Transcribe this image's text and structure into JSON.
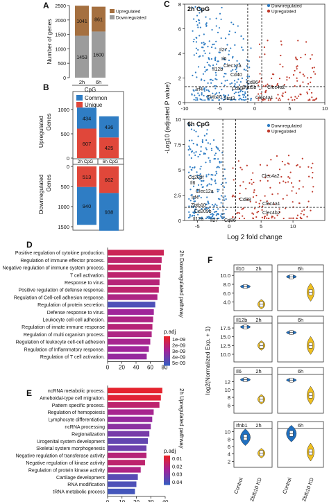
{
  "panels": {
    "A": "A",
    "B": "B",
    "C": "C",
    "D": "D",
    "E": "E",
    "F": "F"
  },
  "colors": {
    "upregulated": "#a57040",
    "downregulated": "#9c9c9c",
    "common": "#2f7dc4",
    "unique": "#e0473a",
    "volcano_down": "#2f7dc4",
    "volcano_up": "#c0392b",
    "padj_low": "#e8232a",
    "padj_mid": "#a0259a",
    "padj_high": "#3a5bbf",
    "violin_control": "#1f6fc0",
    "violin_kd": "#f0c020"
  },
  "chart_data": [
    {
      "id": "A",
      "type": "bar",
      "ylabel": "Number of genes",
      "xlabel": "CpG",
      "categories": [
        "2h",
        "6h"
      ],
      "series": [
        {
          "name": "Downregulated",
          "values": [
            1453,
            1600
          ]
        },
        {
          "name": "Upregulated",
          "values": [
            1041,
            861
          ]
        }
      ],
      "ylim": [
        0,
        2500
      ],
      "yticks": [
        "0",
        "500",
        "1000",
        "1500",
        "2000",
        "2500"
      ],
      "legend": [
        "Upregulated",
        "Downregulated"
      ]
    },
    {
      "id": "B",
      "type": "bar",
      "legend": [
        "Common",
        "Unique"
      ],
      "up": {
        "ylabel": "Upregulated Genes",
        "common": [
          434,
          436
        ],
        "unique": [
          607,
          425
        ],
        "yticks": [
          "0",
          "500",
          "1000"
        ],
        "ylim": [
          0,
          1000
        ]
      },
      "down": {
        "ylabel": "Downregulated Genes",
        "unique": [
          513,
          662
        ],
        "common": [
          940,
          938
        ],
        "yticks": [
          "0",
          "500",
          "1000",
          "1500"
        ],
        "ylim": [
          0,
          1500
        ]
      },
      "categories": [
        "2h CpG",
        "6h CpG"
      ]
    },
    {
      "id": "C",
      "type": "scatter",
      "ylabel": "-Log10 (adjusted P value)",
      "xlabel": "Log 2 fold change",
      "legend": [
        "Downregulated",
        "Upregulated"
      ],
      "top": {
        "title": "2h CpG",
        "xlim": [
          -10,
          10
        ],
        "ylim": [
          0,
          8
        ],
        "xticks": [
          "-10",
          "-5",
          "0",
          "5",
          "10"
        ],
        "yticks": [
          "0",
          "2",
          "4",
          "6",
          "8"
        ],
        "labels": [
          "Il27",
          "Il6",
          "Clec12a",
          "Il12b",
          "Cd40",
          "Cd86",
          "Irf4",
          "Cd83",
          "Stat5b",
          "Clec4a2",
          "Zbtb10",
          "Stat3",
          "Clec4a1"
        ]
      },
      "bottom": {
        "title": "6h CpG",
        "xlim": [
          -7,
          15
        ],
        "ylim": [
          0,
          10
        ],
        "xticks": [
          "-5",
          "0",
          "5",
          "10"
        ],
        "yticks": [
          "0",
          "2.5",
          "5",
          "7.5",
          "10"
        ],
        "labels": [
          "Cd209f",
          "Il6",
          "Clec12a",
          "Irf4",
          "Clec4a2",
          "Cd88",
          "Clec4a1",
          "Clec4b2",
          "Cd209b",
          "Zbtb10",
          "Il12a",
          "Il27",
          "Cd86"
        ]
      }
    },
    {
      "id": "D",
      "type": "bar",
      "side_label": "2h Downregulated pathway",
      "categories": [
        "Positive regulation of cytokine production.",
        "Regulation of immune effector process.",
        "Negative regulation of immune system process.",
        "T cell activation.",
        "Response to virus.",
        "Positive regulation of defense response.",
        "Regulation of Cell-cell adhesion response.",
        "Regulation of protein secretion.",
        "Defense response to virus.",
        "Leukocyte cell-cell adhesion.",
        "Regulation of innate immune response",
        "Regulation of multi organism process.",
        "Regulation of leukocyte cell-cell adhesion",
        "Regulation of Inflammatory response.",
        "Regulation of T cell activation."
      ],
      "values": [
        79,
        76,
        75,
        74,
        73,
        72,
        70,
        67,
        65,
        64,
        63,
        62,
        60,
        58,
        55
      ],
      "padj": [
        0.2,
        0.3,
        0.25,
        0.3,
        0.35,
        0.3,
        0.4,
        0.9,
        0.5,
        0.4,
        0.35,
        0.4,
        0.45,
        0.5,
        0.55
      ],
      "xlim": [
        0,
        80
      ],
      "xticks": [
        "0",
        "20",
        "40",
        "60",
        "80"
      ],
      "legend_title": "p.adj",
      "legend_ticks": [
        "1e-09",
        "2e-09",
        "3e-09",
        "4e-09",
        "5e-09"
      ]
    },
    {
      "id": "E",
      "type": "bar",
      "side_label": "2h Upregulated pathway",
      "categories": [
        "ncRNA metabolic process.",
        "Ameboidal-type cell migration.",
        "Pattern specific process.",
        "Regulation of hemopoiesis",
        "Lymphocyte differentiation",
        "ncRNA processing",
        "Regionalization",
        "Urogenital system development",
        "Skeletal system morphogenesis",
        "Negative regulation of transferase activity",
        "Negative regulation of kinase activity",
        "Regulation of protein kinase activity",
        "Cartilage development",
        "RNA modification",
        "tRNA metabolic process"
      ],
      "values": [
        38,
        37,
        36,
        32,
        31,
        30,
        29,
        28,
        27,
        27,
        26,
        23,
        21,
        20,
        19
      ],
      "padj": [
        0.02,
        0.05,
        0.3,
        0.45,
        0.55,
        0.6,
        0.7,
        0.8,
        0.75,
        0.35,
        0.3,
        0.4,
        0.85,
        0.9,
        0.95
      ],
      "xlim": [
        0,
        40
      ],
      "xticks": [
        "0",
        "10",
        "20",
        "30",
        "40"
      ],
      "legend_title": "p.adj",
      "legend_ticks": [
        "0.01",
        "0.02",
        "0.03",
        "0.04"
      ]
    },
    {
      "id": "F",
      "type": "violin",
      "ylabel": "log2(Normalized Exp. + 1)",
      "x": [
        "Control",
        "Zbtb10 KD"
      ],
      "columns": [
        "2h",
        "6h"
      ],
      "rows": [
        {
          "gene": "Il10",
          "yticks": [
            "4.0",
            "6.0",
            "8.0",
            "10.0"
          ],
          "ylim": [
            3,
            10.5
          ],
          "2h": {
            "Control": 7.5,
            "Zbtb10 KD": 3.5
          },
          "6h": {
            "Control": 9.7,
            "Zbtb10 KD": 6.2
          }
        },
        {
          "gene": "Il12b",
          "yticks": [
            "10.0",
            "12.5",
            "15.0",
            "17.5"
          ],
          "ylim": [
            9,
            18.5
          ],
          "2h": {
            "Control": 17.8,
            "Zbtb10 KD": 12.5
          },
          "6h": {
            "Control": 16.2,
            "Zbtb10 KD": 12.5
          }
        },
        {
          "gene": "Il6",
          "yticks": [
            "6",
            "8",
            "10",
            "12"
          ],
          "ylim": [
            5,
            13.5
          ],
          "2h": {
            "Control": 12.5,
            "Zbtb10 KD": 7.5
          },
          "6h": {
            "Control": 12.4,
            "Zbtb10 KD": 8.5
          }
        },
        {
          "gene": "Ifnb1",
          "yticks": [
            "2",
            "4",
            "6",
            "8",
            "10"
          ],
          "ylim": [
            1.5,
            10.5
          ],
          "2h": {
            "Control": 8.5,
            "Zbtb10 KD": 4.2
          },
          "6h": {
            "Control": 9.5,
            "Zbtb10 KD": 4.5
          }
        }
      ]
    }
  ]
}
